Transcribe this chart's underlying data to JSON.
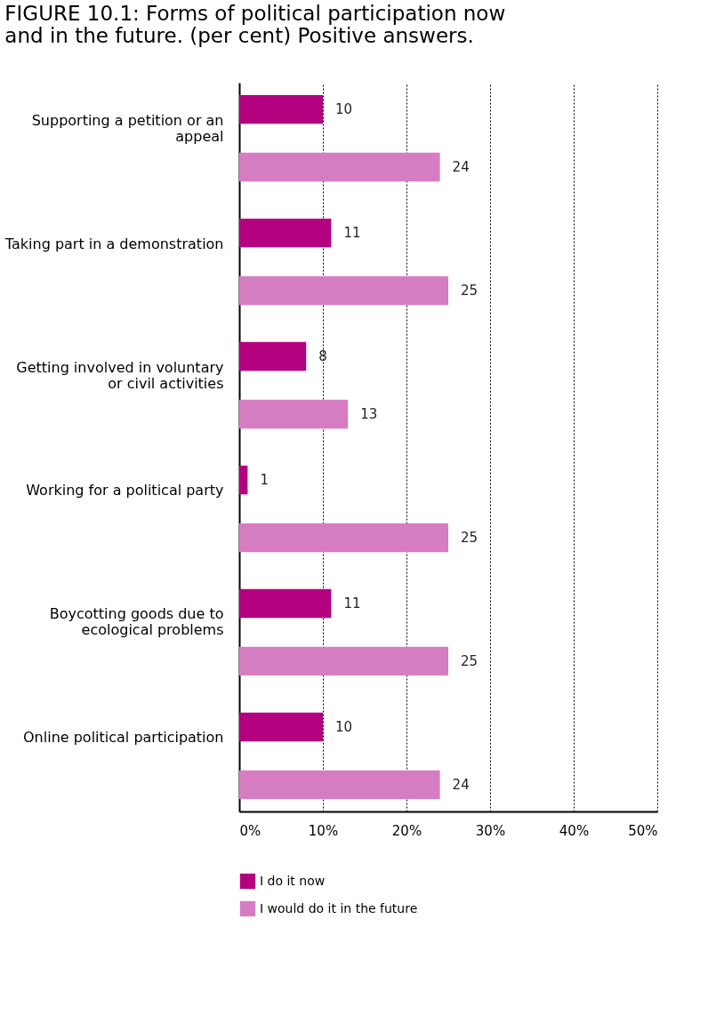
{
  "chart_data": {
    "type": "bar",
    "orientation": "horizontal",
    "title": "FIGURE 10.1: Forms of political participation now and in the future. (per cent) Positive answers.",
    "categories": [
      "Supporting a petition or an appeal",
      "Taking part in a demonstration",
      "Getting involved in voluntary or civil activities",
      "Working for a political party",
      "Boycotting goods due to ecological problems",
      "Online political participation"
    ],
    "series": [
      {
        "name": "I do it now",
        "color": "#b3007f",
        "values": [
          10,
          11,
          8,
          1,
          11,
          10
        ]
      },
      {
        "name": "I would do it in the future",
        "color": "#d67cc3",
        "values": [
          24,
          25,
          13,
          25,
          25,
          24
        ]
      }
    ],
    "xlim": [
      0,
      50
    ],
    "xticks": [
      {
        "value": 0,
        "label": "0%"
      },
      {
        "value": 10,
        "label": "10%"
      },
      {
        "value": 20,
        "label": "20%"
      },
      {
        "value": 30,
        "label": "30%"
      },
      {
        "value": 40,
        "label": "40%"
      },
      {
        "value": 50,
        "label": "50%"
      }
    ],
    "grid": "x",
    "line_style": "dotted",
    "data_labels": true,
    "legend": "bottom left"
  }
}
